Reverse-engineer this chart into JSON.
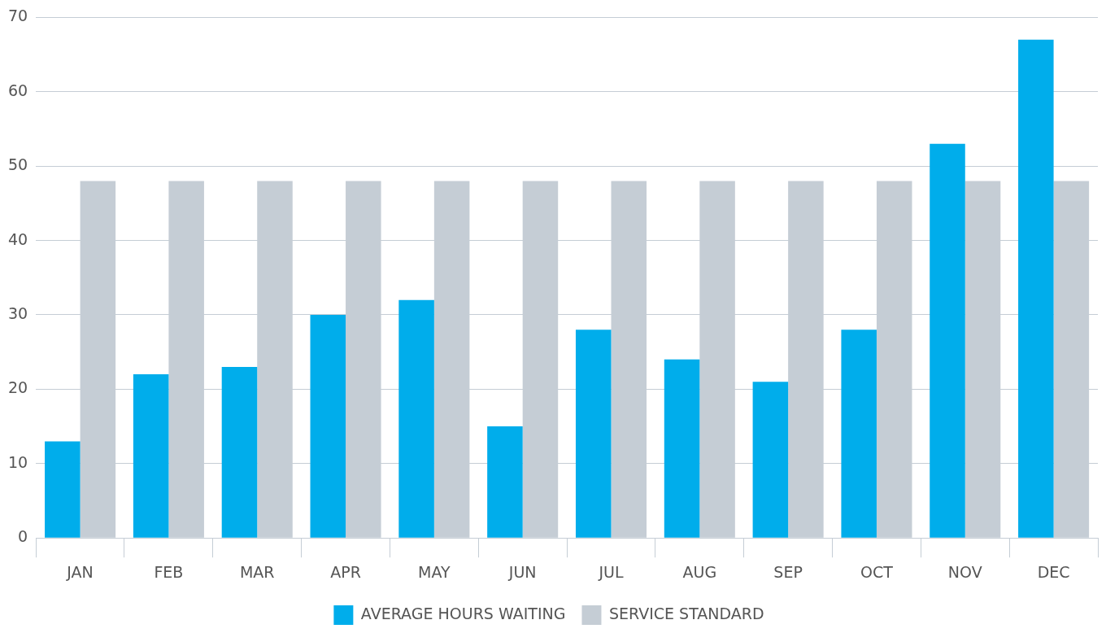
{
  "chart_data": {
    "type": "bar",
    "categories": [
      "JAN",
      "FEB",
      "MAR",
      "APR",
      "MAY",
      "JUN",
      "JUL",
      "AUG",
      "SEP",
      "OCT",
      "NOV",
      "DEC"
    ],
    "series": [
      {
        "name": "AVERAGE HOURS WAITING",
        "color": "#00adeb",
        "values": [
          13,
          22,
          23,
          30,
          32,
          15,
          28,
          24,
          21,
          28,
          53,
          67
        ]
      },
      {
        "name": "SERVICE STANDARD",
        "color": "#c5cdd5",
        "values": [
          48,
          48,
          48,
          48,
          48,
          48,
          48,
          48,
          48,
          48,
          48,
          48
        ]
      }
    ],
    "ylim": [
      0,
      70
    ],
    "yticks": [
      0,
      10,
      20,
      30,
      40,
      50,
      60,
      70
    ],
    "grid": "y",
    "legend": "bottom"
  }
}
